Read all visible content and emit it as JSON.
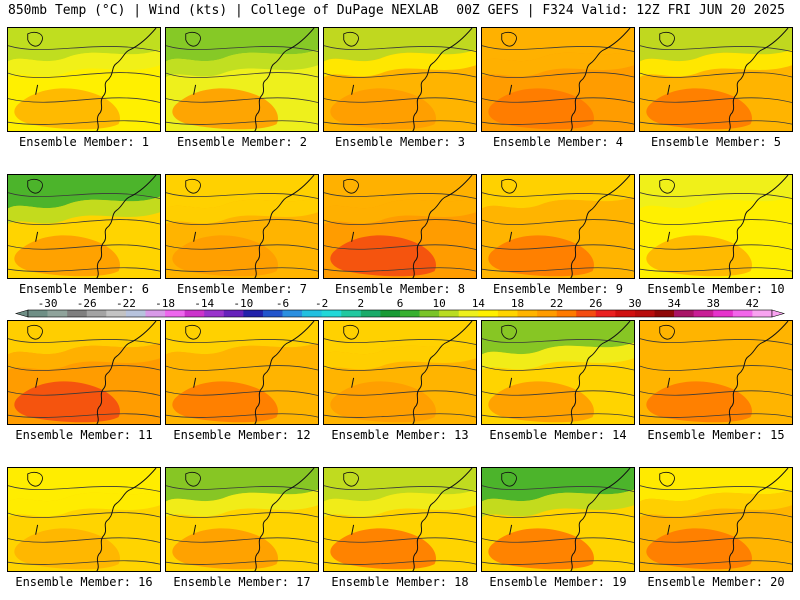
{
  "header": {
    "left": "850mb Temp (°C) | Wind (kts) | College of DuPage NEXLAB",
    "right": "00Z GEFS | F324 Valid: 12Z FRI JUN 20 2025"
  },
  "panels": [
    {
      "label": "Ensemble Member: 1",
      "temp": 15.5,
      "north": 11,
      "warm": 19
    },
    {
      "label": "Ensemble Member: 2",
      "temp": 12,
      "north": 9,
      "warm": 20
    },
    {
      "label": "Ensemble Member: 3",
      "temp": 18,
      "north": 11,
      "warm": 21
    },
    {
      "label": "Ensemble Member: 4",
      "temp": 21,
      "north": 18,
      "warm": 23
    },
    {
      "label": "Ensemble Member: 5",
      "temp": 19,
      "north": 11,
      "warm": 22
    },
    {
      "label": "Ensemble Member: 6",
      "temp": 16,
      "north": 7,
      "warm": 20
    },
    {
      "label": "Ensemble Member: 7",
      "temp": 18.5,
      "north": 17,
      "warm": 20
    },
    {
      "label": "Ensemble Member: 8",
      "temp": 20,
      "north": 19,
      "warm": 24
    },
    {
      "label": "Ensemble Member: 9",
      "temp": 19.5,
      "north": 17,
      "warm": 23
    },
    {
      "label": "Ensemble Member: 10",
      "temp": 15,
      "north": 13,
      "warm": 18
    },
    {
      "label": "Ensemble Member: 11",
      "temp": 20.5,
      "north": 17,
      "warm": 25
    },
    {
      "label": "Ensemble Member: 12",
      "temp": 19,
      "north": 17,
      "warm": 22
    },
    {
      "label": "Ensemble Member: 13",
      "temp": 18,
      "north": 17,
      "warm": 20
    },
    {
      "label": "Ensemble Member: 14",
      "temp": 17,
      "north": 8,
      "warm": 20
    },
    {
      "label": "Ensemble Member: 15",
      "temp": 19.5,
      "north": 18,
      "warm": 22
    },
    {
      "label": "Ensemble Member: 16",
      "temp": 16.5,
      "north": 15,
      "warm": 18
    },
    {
      "label": "Ensemble Member: 17",
      "temp": 16,
      "north": 8,
      "warm": 21
    },
    {
      "label": "Ensemble Member: 18",
      "temp": 16.5,
      "north": 11,
      "warm": 22
    },
    {
      "label": "Ensemble Member: 19",
      "temp": 16,
      "north": 7,
      "warm": 23
    },
    {
      "label": "Ensemble Member: 20",
      "temp": 19,
      "north": 14,
      "warm": 22
    }
  ],
  "colorbar": {
    "ticks": [
      "-30",
      "-26",
      "-22",
      "-18",
      "-14",
      "-10",
      "-6",
      "-2",
      "2",
      "6",
      "10",
      "14",
      "18",
      "22",
      "26",
      "30",
      "34",
      "38",
      "42"
    ],
    "colors": [
      "#6f8f86",
      "#8fa39b",
      "#7f7f7f",
      "#a3a3a3",
      "#c3c3c3",
      "#b7c3dd",
      "#d899e8",
      "#ee66ee",
      "#cc33cc",
      "#9933cc",
      "#6622bb",
      "#2222aa",
      "#2255cc",
      "#2a8fe0",
      "#22c0e0",
      "#22d8d8",
      "#22c8a0",
      "#1aab6a",
      "#189a35",
      "#38b030",
      "#7ac428",
      "#b9dc22",
      "#eef01c",
      "#fff000",
      "#ffd400",
      "#ffb400",
      "#ff9c00",
      "#ff7a00",
      "#f44c10",
      "#ea2020",
      "#d01010",
      "#b80d0d",
      "#8f0808",
      "#a81466",
      "#c81e96",
      "#e633cc",
      "#f266ea",
      "#f8a3f0"
    ]
  }
}
